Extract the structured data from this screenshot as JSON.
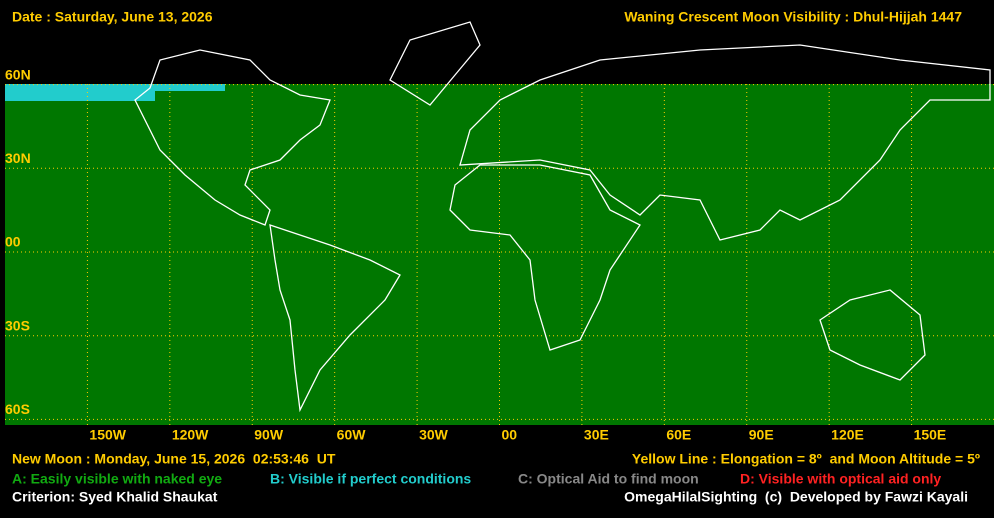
{
  "header": {
    "left": "Date : Saturday, June 13, 2026",
    "right": "Waning Crescent Moon Visibility : Dhul-Hijjah 1447"
  },
  "map": {
    "lat_labels": [
      "60N",
      "30N",
      "00",
      "30S",
      "60S"
    ],
    "lon_labels": [
      "150W",
      "120W",
      "90W",
      "60W",
      "30W",
      "00",
      "30E",
      "60E",
      "90E",
      "120E",
      "150E"
    ]
  },
  "footer": {
    "new_moon": "New Moon : Monday, June 15, 2026  02:53:46  UT",
    "yellow_line": "Yellow Line : Elongation = 8º  and Moon Altitude = 5º",
    "criterion": "Criterion: Syed Khalid Shaukat",
    "credit": "OmegaHilalSighting  (c)  Developed by Fawzi Kayali"
  },
  "legend": {
    "a": "A: Easily visible with naked eye",
    "b": "B: Visible if perfect conditions",
    "c": "C: Optical Aid to find moon",
    "d": "D: Visible with optical aid only"
  }
}
